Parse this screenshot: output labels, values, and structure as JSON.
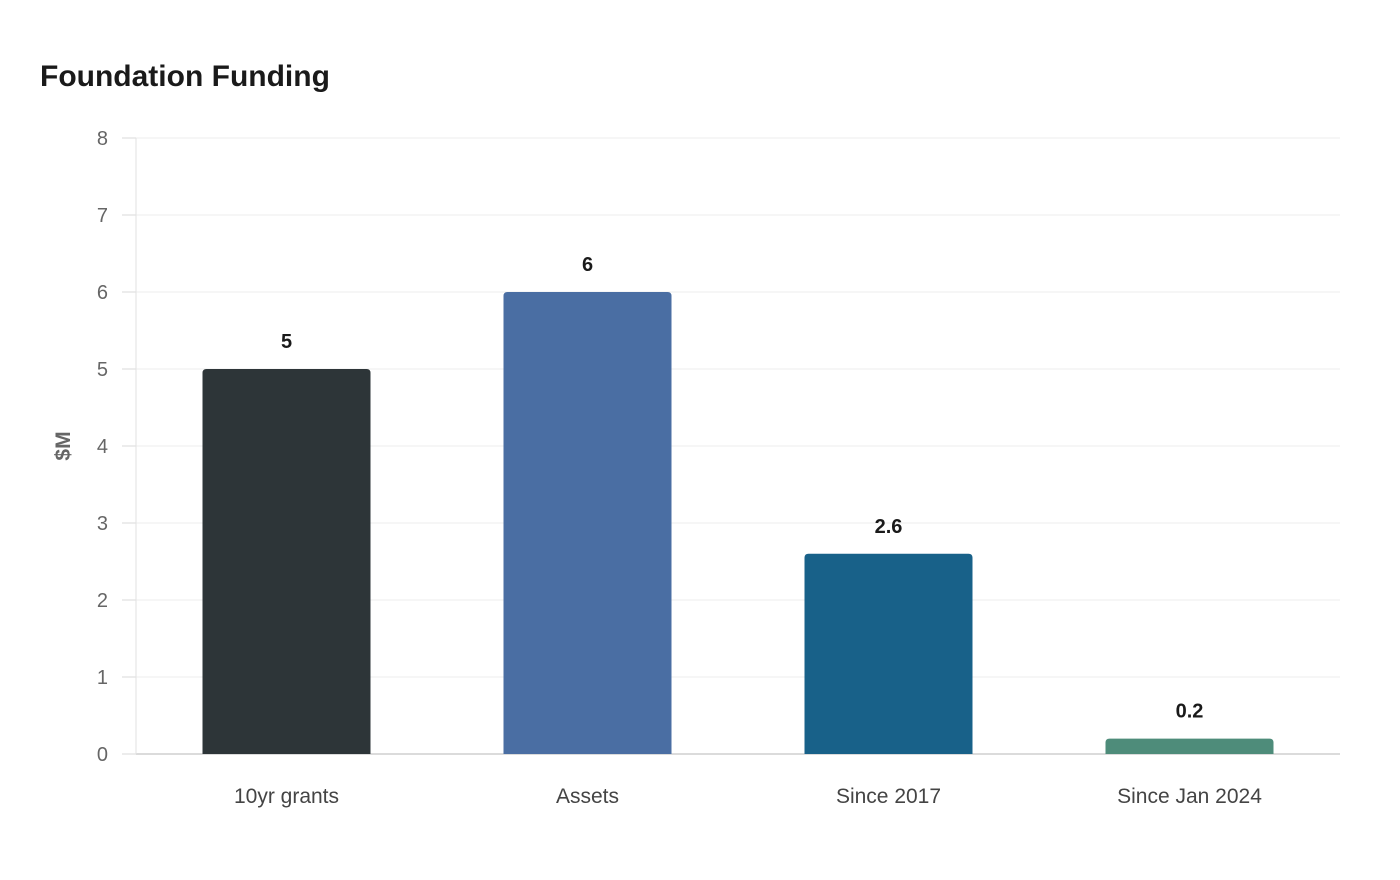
{
  "chart_data": {
    "type": "bar",
    "title": "Foundation Funding",
    "xlabel": "",
    "ylabel": "$M",
    "ylim": [
      0,
      8
    ],
    "yticks": [
      0,
      1,
      2,
      3,
      4,
      5,
      6,
      7,
      8
    ],
    "grid": true,
    "categories": [
      "10yr grants",
      "Assets",
      "Since 2017",
      "Since Jan 2024"
    ],
    "values": [
      5,
      6,
      2.6,
      0.2
    ],
    "data_labels": [
      "5",
      "6",
      "2.6",
      "0.2"
    ],
    "colors": [
      "#2d3538",
      "#4a6ea3",
      "#186189",
      "#4e8c7a"
    ]
  }
}
